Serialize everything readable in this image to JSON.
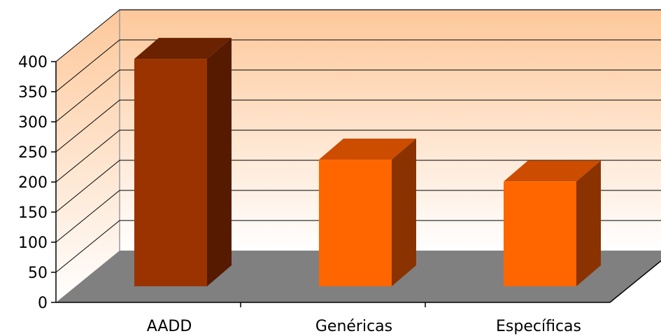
{
  "chart_data": {
    "type": "bar",
    "categories": [
      "AADD",
      "Genéricas",
      "Específicas"
    ],
    "values": [
      395,
      220,
      182
    ],
    "title": "",
    "xlabel": "",
    "ylabel": "",
    "ylim": [
      0,
      400
    ],
    "yticks": [
      0,
      50,
      100,
      150,
      200,
      250,
      300,
      350,
      400
    ],
    "grid": true,
    "legend": "none",
    "three_d": true
  },
  "colors": {
    "bar_front": [
      "#9a3300",
      "#ff6600",
      "#ff6600"
    ],
    "bar_top": [
      "#6a2200",
      "#cc4c00",
      "#cc4c00"
    ],
    "bar_side": [
      "#551a00",
      "#8a3300",
      "#8a3300"
    ],
    "floor": "#808080",
    "wall_top": "#fdc89a",
    "wall_bottom": "#ffffff",
    "gridline": "#000000"
  }
}
